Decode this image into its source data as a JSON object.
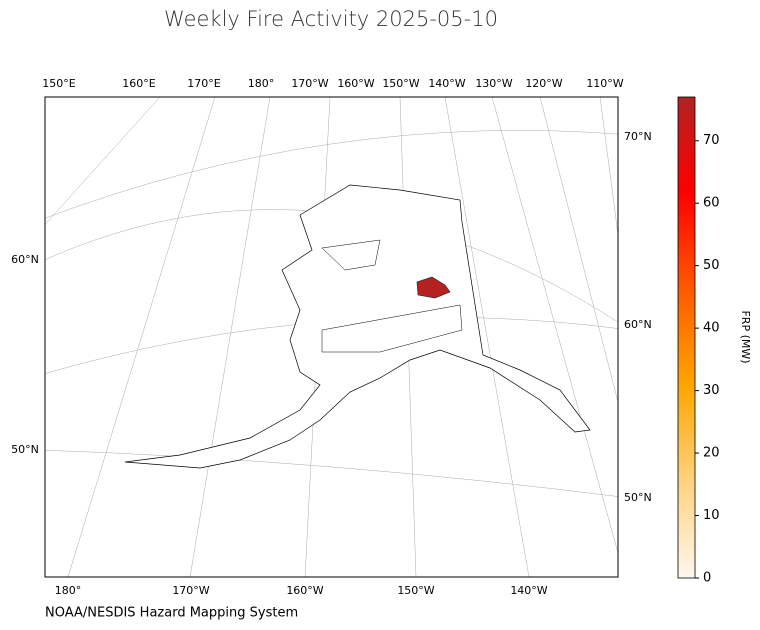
{
  "title": "Weekly Fire Activity 2025-05-10",
  "map": {
    "top_lon_labels": [
      "150°E",
      "160°E",
      "170°E",
      "180°",
      "170°W",
      "160°W",
      "150°W",
      "140°W",
      "130°W",
      "120°W",
      "110°W"
    ],
    "bottom_lon_labels": [
      "180°",
      "170°W",
      "160°W",
      "150°W",
      "140°W"
    ],
    "left_lat_labels": [
      "60°N",
      "50°N"
    ],
    "right_lat_labels": [
      "70°N",
      "60°N",
      "50°N"
    ]
  },
  "colorbar": {
    "label": "FRP (MW)",
    "lim": [
      0,
      77
    ],
    "ticks": [
      0,
      10,
      20,
      30,
      40,
      50,
      60,
      70
    ],
    "colors": [
      "#fff8ee",
      "#ffd27f",
      "#ffa500",
      "#ff5a00",
      "#ff0000",
      "#b22222"
    ]
  },
  "fires": [
    {
      "frp": 76
    }
  ],
  "source": "NOAA/NESDIS Hazard Mapping System"
}
